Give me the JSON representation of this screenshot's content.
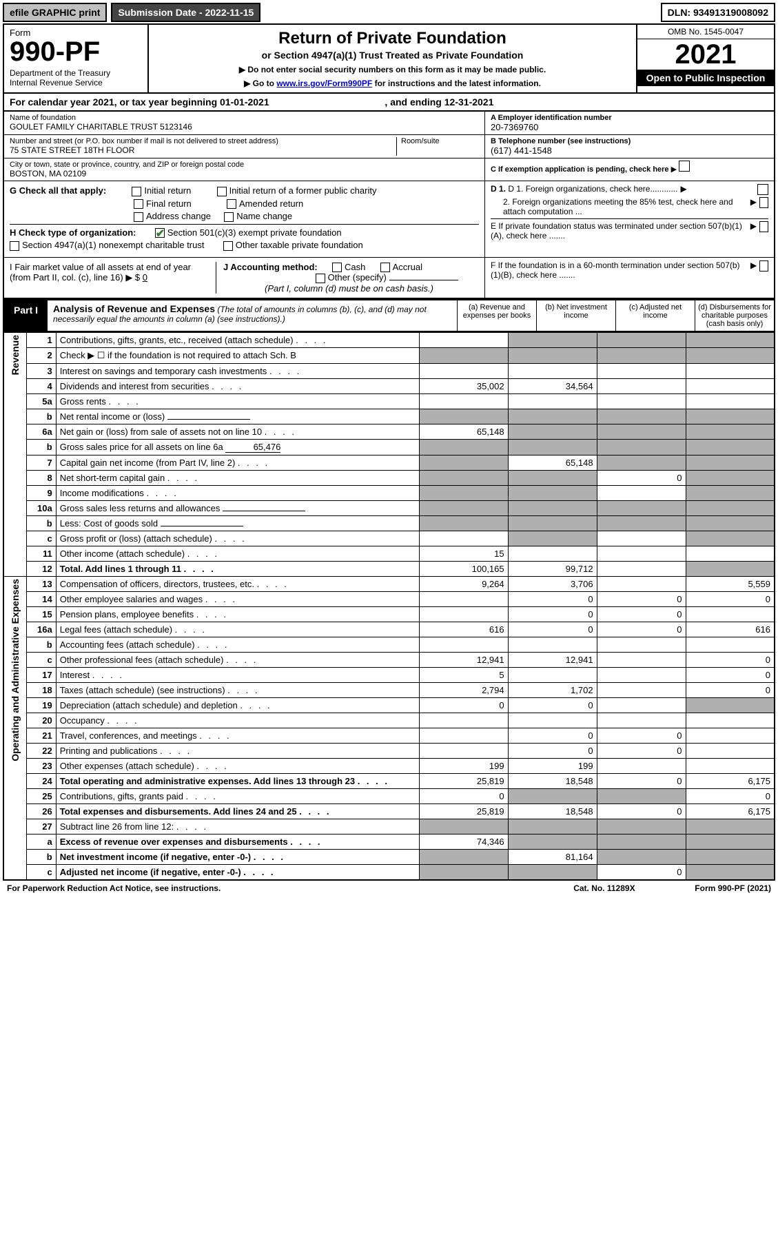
{
  "topbar": {
    "efile": "efile GRAPHIC print",
    "submission": "Submission Date - 2022-11-15",
    "dln": "DLN: 93491319008092"
  },
  "header": {
    "form_word": "Form",
    "form_number": "990-PF",
    "dept": "Department of the Treasury\nInternal Revenue Service",
    "title": "Return of Private Foundation",
    "subtitle": "or Section 4947(a)(1) Trust Treated as Private Foundation",
    "instr1": "▶ Do not enter social security numbers on this form as it may be made public.",
    "instr2_pre": "▶ Go to ",
    "instr2_link": "www.irs.gov/Form990PF",
    "instr2_post": " for instructions and the latest information.",
    "omb": "OMB No. 1545-0047",
    "year": "2021",
    "open": "Open to Public Inspection"
  },
  "cal_year": {
    "text_pre": "For calendar year 2021, or tax year beginning ",
    "begin": "01-01-2021",
    "mid": " , and ending ",
    "end": "12-31-2021"
  },
  "ident": {
    "name_label": "Name of foundation",
    "name": "GOULET FAMILY CHARITABLE TRUST 5123146",
    "ein_label": "A Employer identification number",
    "ein": "20-7369760",
    "addr_label": "Number and street (or P.O. box number if mail is not delivered to street address)",
    "addr": "75 STATE STREET 18TH FLOOR",
    "room_label": "Room/suite",
    "room": "",
    "tel_label": "B Telephone number (see instructions)",
    "tel": "(617) 441-1548",
    "city_label": "City or town, state or province, country, and ZIP or foreign postal code",
    "city": "BOSTON, MA  02109",
    "c_label": "C If exemption application is pending, check here"
  },
  "checks": {
    "g_label": "G Check all that apply:",
    "g_opts": [
      "Initial return",
      "Initial return of a former public charity",
      "Final return",
      "Amended return",
      "Address change",
      "Name change"
    ],
    "h_label": "H Check type of organization:",
    "h_1": "Section 501(c)(3) exempt private foundation",
    "h_2": "Section 4947(a)(1) nonexempt charitable trust",
    "h_3": "Other taxable private foundation",
    "i_label": "I Fair market value of all assets at end of year (from Part II, col. (c), line 16) ▶ $",
    "i_val": "0",
    "j_label": "J Accounting method:",
    "j_cash": "Cash",
    "j_accrual": "Accrual",
    "j_other": "Other (specify)",
    "j_note": "(Part I, column (d) must be on cash basis.)",
    "d1": "D 1. Foreign organizations, check here............",
    "d2": "2. Foreign organizations meeting the 85% test, check here and attach computation ...",
    "e": "E  If private foundation status was terminated under section 507(b)(1)(A), check here .......",
    "f": "F  If the foundation is in a 60-month termination under section 507(b)(1)(B), check here .......",
    "arrow": "▶"
  },
  "part1": {
    "tab": "Part I",
    "title": "Analysis of Revenue and Expenses",
    "note": " (The total of amounts in columns (b), (c), and (d) may not necessarily equal the amounts in column (a) (see instructions).)",
    "col_a": "(a)  Revenue and expenses per books",
    "col_b": "(b)  Net investment income",
    "col_c": "(c)  Adjusted net income",
    "col_d": "(d)  Disbursements for charitable purposes (cash basis only)"
  },
  "side": {
    "rev": "Revenue",
    "exp": "Operating and Administrative Expenses"
  },
  "rows": {
    "r1": {
      "no": "1",
      "desc": "Contributions, gifts, grants, etc., received (attach schedule)",
      "a": "",
      "b_g": true,
      "c_g": true,
      "d_g": true
    },
    "r2": {
      "no": "2",
      "desc": "Check ▶ ☐ if the foundation is not required to attach Sch. B",
      "a_g": true,
      "b_g": true,
      "c_g": true,
      "d_g": true,
      "plain": true
    },
    "r3": {
      "no": "3",
      "desc": "Interest on savings and temporary cash investments"
    },
    "r4": {
      "no": "4",
      "desc": "Dividends and interest from securities",
      "a": "35,002",
      "b": "34,564"
    },
    "r5a": {
      "no": "5a",
      "desc": "Gross rents"
    },
    "r5b": {
      "no": "b",
      "desc": "Net rental income or (loss)",
      "a_g": true,
      "b_g": true,
      "c_g": true,
      "d_g": true,
      "inline_field": true
    },
    "r6a": {
      "no": "6a",
      "desc": "Net gain or (loss) from sale of assets not on line 10",
      "a": "65,148",
      "b_g": true,
      "c_g": true,
      "d_g": true
    },
    "r6b": {
      "no": "b",
      "desc": "Gross sales price for all assets on line 6a",
      "inline_val": "65,476",
      "a_g": true,
      "b_g": true,
      "c_g": true,
      "d_g": true
    },
    "r7": {
      "no": "7",
      "desc": "Capital gain net income (from Part IV, line 2)",
      "a_g": true,
      "b": "65,148",
      "c_g": true,
      "d_g": true
    },
    "r8": {
      "no": "8",
      "desc": "Net short-term capital gain",
      "a_g": true,
      "b_g": true,
      "c": "0",
      "d_g": true
    },
    "r9": {
      "no": "9",
      "desc": "Income modifications",
      "a_g": true,
      "b_g": true,
      "d_g": true
    },
    "r10a": {
      "no": "10a",
      "desc": "Gross sales less returns and allowances",
      "a_g": true,
      "b_g": true,
      "c_g": true,
      "d_g": true,
      "inline_field": true
    },
    "r10b": {
      "no": "b",
      "desc": "Less: Cost of goods sold",
      "a_g": true,
      "b_g": true,
      "c_g": true,
      "d_g": true,
      "inline_field": true
    },
    "r10c": {
      "no": "c",
      "desc": "Gross profit or (loss) (attach schedule)",
      "b_g": true,
      "d_g": true
    },
    "r11": {
      "no": "11",
      "desc": "Other income (attach schedule)",
      "a": "15"
    },
    "r12": {
      "no": "12",
      "desc": "Total. Add lines 1 through 11",
      "bold": true,
      "a": "100,165",
      "b": "99,712",
      "d_g": true
    },
    "r13": {
      "no": "13",
      "desc": "Compensation of officers, directors, trustees, etc.",
      "a": "9,264",
      "b": "3,706",
      "d": "5,559"
    },
    "r14": {
      "no": "14",
      "desc": "Other employee salaries and wages",
      "b": "0",
      "c": "0",
      "d": "0"
    },
    "r15": {
      "no": "15",
      "desc": "Pension plans, employee benefits",
      "b": "0",
      "c": "0"
    },
    "r16a": {
      "no": "16a",
      "desc": "Legal fees (attach schedule)",
      "a": "616",
      "b": "0",
      "c": "0",
      "d": "616"
    },
    "r16b": {
      "no": "b",
      "desc": "Accounting fees (attach schedule)"
    },
    "r16c": {
      "no": "c",
      "desc": "Other professional fees (attach schedule)",
      "a": "12,941",
      "b": "12,941",
      "d": "0"
    },
    "r17": {
      "no": "17",
      "desc": "Interest",
      "a": "5",
      "d": "0"
    },
    "r18": {
      "no": "18",
      "desc": "Taxes (attach schedule) (see instructions)",
      "a": "2,794",
      "b": "1,702",
      "d": "0"
    },
    "r19": {
      "no": "19",
      "desc": "Depreciation (attach schedule) and depletion",
      "a": "0",
      "b": "0",
      "d_g": true
    },
    "r20": {
      "no": "20",
      "desc": "Occupancy"
    },
    "r21": {
      "no": "21",
      "desc": "Travel, conferences, and meetings",
      "b": "0",
      "c": "0"
    },
    "r22": {
      "no": "22",
      "desc": "Printing and publications",
      "b": "0",
      "c": "0"
    },
    "r23": {
      "no": "23",
      "desc": "Other expenses (attach schedule)",
      "a": "199",
      "b": "199"
    },
    "r24": {
      "no": "24",
      "desc": "Total operating and administrative expenses. Add lines 13 through 23",
      "bold": true,
      "a": "25,819",
      "b": "18,548",
      "c": "0",
      "d": "6,175"
    },
    "r25": {
      "no": "25",
      "desc": "Contributions, gifts, grants paid",
      "a": "0",
      "b_g": true,
      "c_g": true,
      "d": "0"
    },
    "r26": {
      "no": "26",
      "desc": "Total expenses and disbursements. Add lines 24 and 25",
      "bold": true,
      "a": "25,819",
      "b": "18,548",
      "c": "0",
      "d": "6,175"
    },
    "r27": {
      "no": "27",
      "desc": "Subtract line 26 from line 12:",
      "a_g": true,
      "b_g": true,
      "c_g": true,
      "d_g": true
    },
    "r27a": {
      "no": "a",
      "desc": "Excess of revenue over expenses and disbursements",
      "bold": true,
      "a": "74,346",
      "b_g": true,
      "c_g": true,
      "d_g": true
    },
    "r27b": {
      "no": "b",
      "desc": "Net investment income (if negative, enter -0-)",
      "bold": true,
      "a_g": true,
      "b": "81,164",
      "c_g": true,
      "d_g": true
    },
    "r27c": {
      "no": "c",
      "desc": "Adjusted net income (if negative, enter -0-)",
      "bold": true,
      "a_g": true,
      "b_g": true,
      "c": "0",
      "d_g": true
    }
  },
  "row_order_rev": [
    "r1",
    "r2",
    "r3",
    "r4",
    "r5a",
    "r5b",
    "r6a",
    "r6b",
    "r7",
    "r8",
    "r9",
    "r10a",
    "r10b",
    "r10c",
    "r11",
    "r12"
  ],
  "row_order_exp": [
    "r13",
    "r14",
    "r15",
    "r16a",
    "r16b",
    "r16c",
    "r17",
    "r18",
    "r19",
    "r20",
    "r21",
    "r22",
    "r23",
    "r24",
    "r25",
    "r26",
    "r27",
    "r27a",
    "r27b",
    "r27c"
  ],
  "footer": {
    "left": "For Paperwork Reduction Act Notice, see instructions.",
    "mid": "Cat. No. 11289X",
    "right": "Form 990-PF (2021)"
  },
  "colors": {
    "grey": "#b0b0b0",
    "link": "#0000cc",
    "check": "#2e7d32"
  }
}
